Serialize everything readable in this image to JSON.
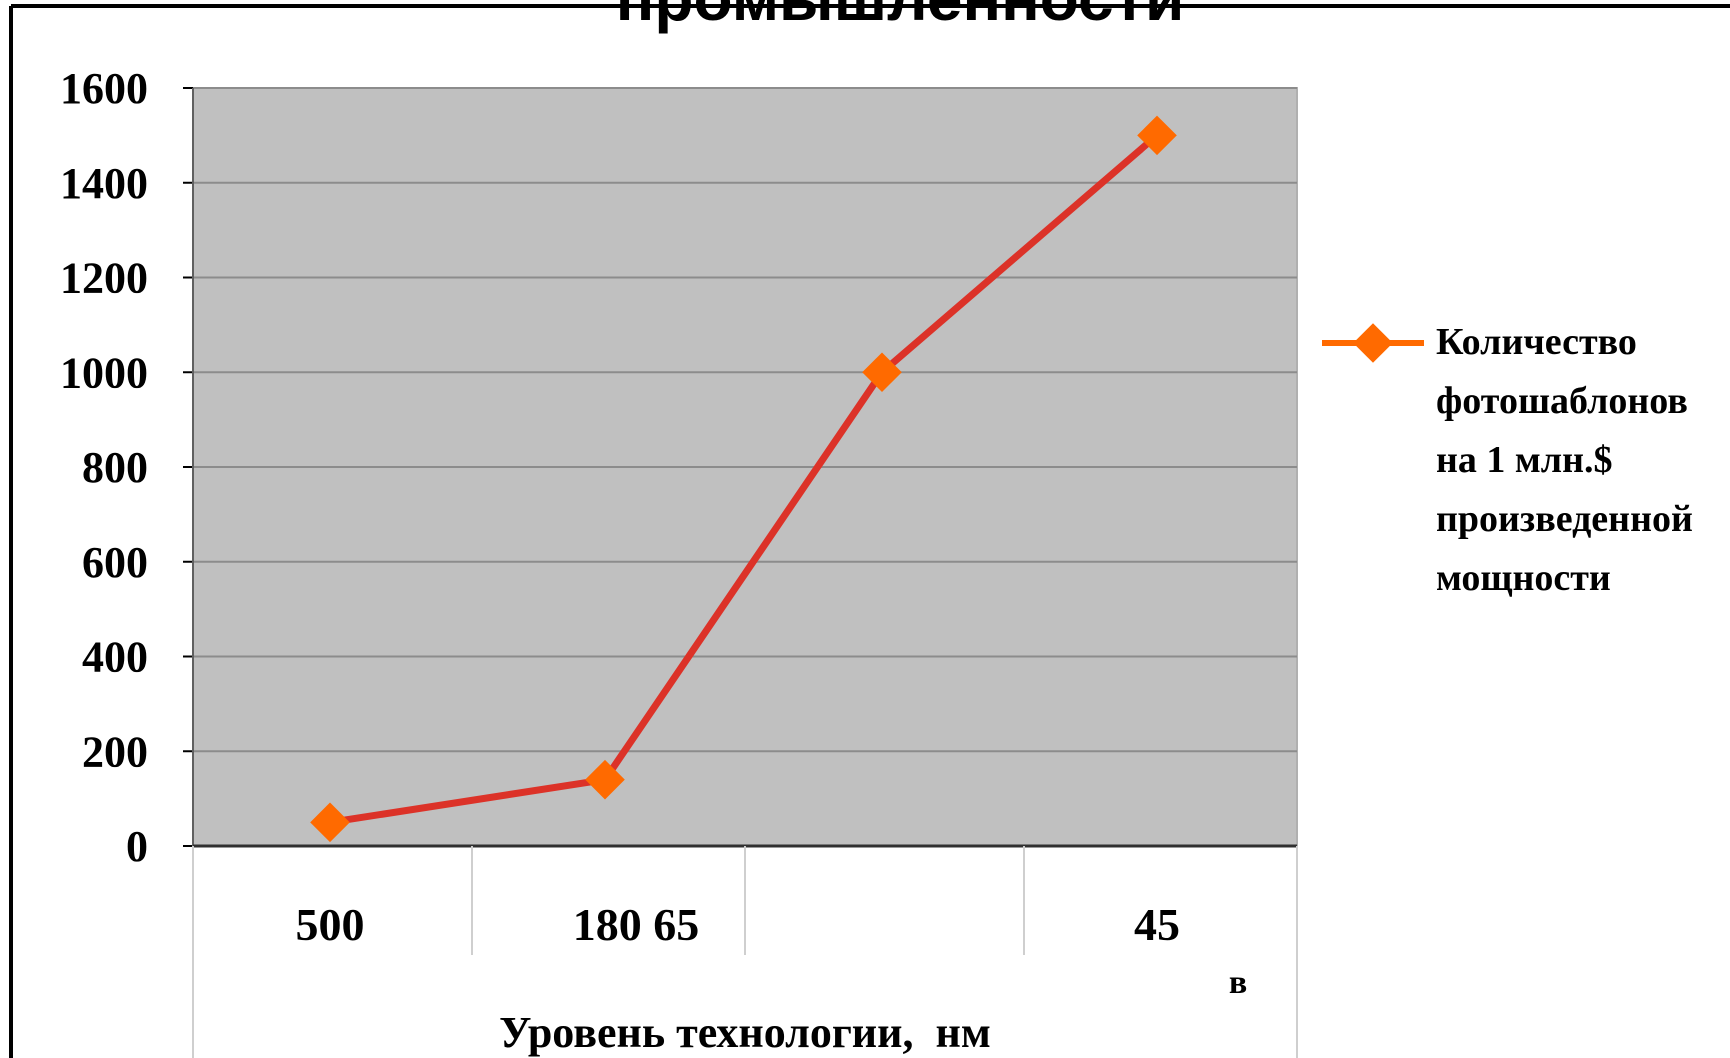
{
  "colors": {
    "plot_background": "#c0c0c0",
    "gridline": "#8c8c8c",
    "series_line": "#dc3228",
    "marker": "#ff6a00",
    "frame": "#000000"
  },
  "chart_data": {
    "type": "line",
    "title": "промышленности",
    "xlabel": "Уровень технологии,  нм",
    "ylabel": "",
    "ylim": [
      0,
      1600
    ],
    "yticks": [
      0,
      200,
      400,
      600,
      800,
      1000,
      1200,
      1400,
      1600
    ],
    "grid": true,
    "legend_position": "right",
    "category_labels": [
      "500",
      "180 65",
      "",
      "45"
    ],
    "axis_note": "в",
    "series": [
      {
        "name": "Количество фотошаблонов на 1 млн.$ произведенной мощности",
        "name_lines": [
          "Количество",
          "фотошаблонов",
          "на 1 млн.$",
          "произведенной",
          "мощности"
        ],
        "values": [
          50,
          140,
          1000,
          1500
        ]
      }
    ]
  }
}
